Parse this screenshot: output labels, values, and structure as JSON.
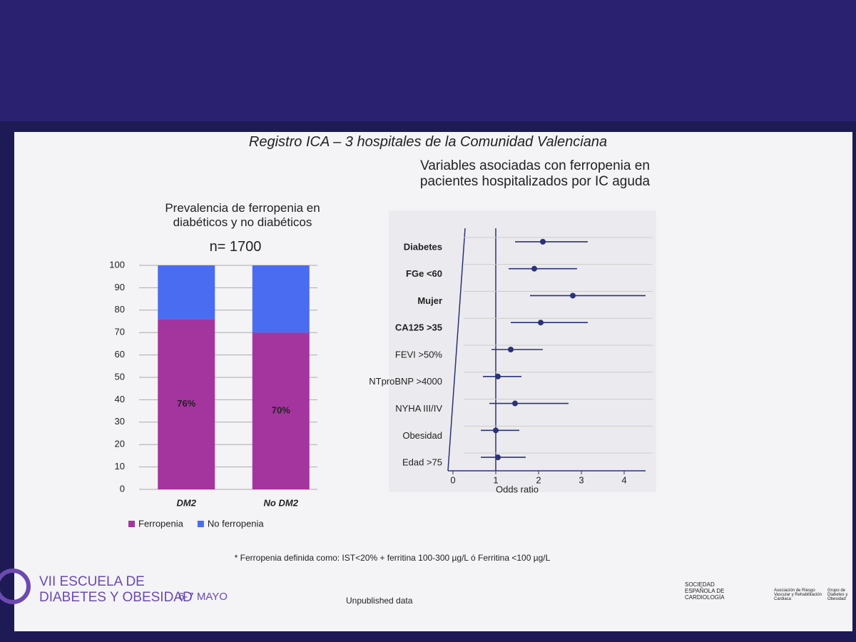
{
  "header": {
    "title": "Registro ICA – 3 hospitales de la Comunidad Valenciana"
  },
  "chart_data": [
    {
      "type": "stacked_bar",
      "title": "Prevalencia de ferropenia en diabéticos y no diabéticos",
      "annotation": "n= 1700",
      "categories": [
        "DM2",
        "No DM2"
      ],
      "series": [
        {
          "name": "Ferropenia",
          "color": "#a4349e",
          "values": [
            76,
            70
          ],
          "value_labels": [
            "76%",
            "70%"
          ]
        },
        {
          "name": "No ferropenia",
          "color": "#4a6cf0",
          "values": [
            24,
            30
          ]
        }
      ],
      "ylim": [
        0,
        100
      ],
      "yticks": [
        0,
        10,
        20,
        30,
        40,
        50,
        60,
        70,
        80,
        90,
        100
      ],
      "grid": true,
      "legend": "bottom"
    },
    {
      "type": "forest",
      "title": "Variables asociadas con ferropenia en pacientes hospitalizados por IC aguda",
      "xlabel": "Odds ratio",
      "categories": [
        "Diabetes",
        "FGe <60",
        "Mujer",
        "CA125 >35",
        "FEVI >50%",
        "NTproBNP >4000",
        "NYHA III/IV",
        "Obesidad",
        "Edad >75"
      ],
      "values": [
        2.1,
        1.9,
        2.8,
        2.05,
        1.35,
        1.05,
        1.45,
        1.0,
        1.05
      ],
      "ci_low": [
        1.45,
        1.3,
        1.8,
        1.35,
        0.9,
        0.7,
        0.85,
        0.65,
        0.65
      ],
      "ci_high": [
        3.15,
        2.9,
        4.5,
        3.15,
        2.1,
        1.6,
        2.7,
        1.55,
        1.7
      ],
      "reference_line": 1,
      "color": "#2c3278",
      "xlim": [
        0,
        4.5
      ],
      "xticks": [
        0,
        1,
        2,
        3,
        4
      ],
      "grid": true
    }
  ],
  "footer": {
    "note": "* Ferropenia definida como: IST<20% + ferritina 100-300 µg/L ó Ferritina <100 µg/L",
    "event_line1": "VII ESCUELA DE",
    "event_line2": "DIABETES Y OBESIDAD",
    "dates": "6-7 MAYO",
    "status": "Unpublished data",
    "logo1": "SOCIEDAD ESPAÑOLA DE CARDIOLOGÍA",
    "logo2": "Asociación de Riesgo Vascular y Rehabilitación Cardiaca",
    "logo3": "Grupo de Diabetes y Obesidad"
  }
}
